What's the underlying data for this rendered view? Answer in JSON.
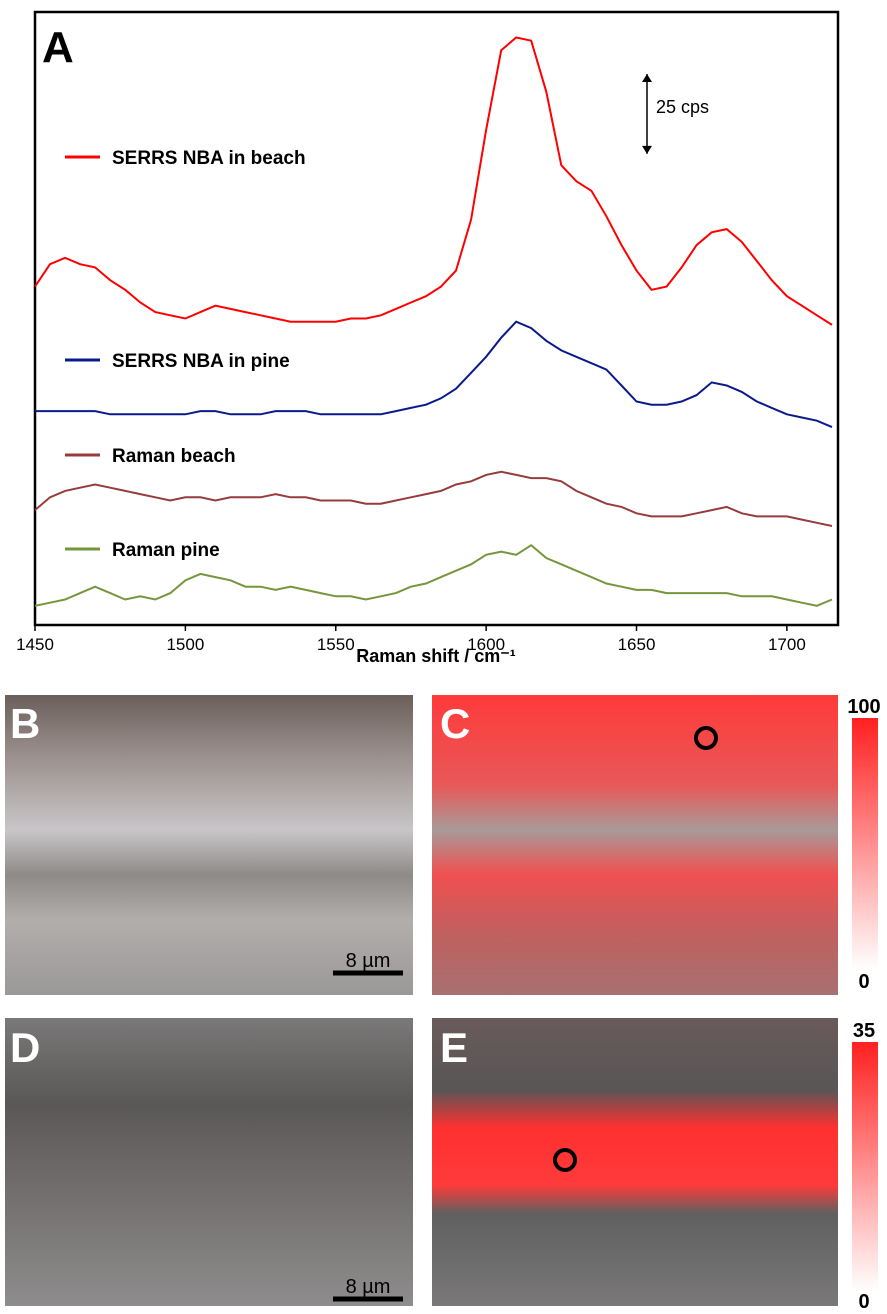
{
  "chart_data": {
    "type": "line",
    "panel_label": "A",
    "xlabel": "Raman shift / cm⁻¹",
    "x": [
      1450,
      1455,
      1460,
      1465,
      1470,
      1475,
      1480,
      1485,
      1490,
      1495,
      1500,
      1505,
      1510,
      1515,
      1520,
      1525,
      1530,
      1535,
      1540,
      1545,
      1550,
      1555,
      1560,
      1565,
      1570,
      1575,
      1580,
      1585,
      1590,
      1595,
      1600,
      1605,
      1610,
      1615,
      1620,
      1625,
      1630,
      1635,
      1640,
      1645,
      1650,
      1655,
      1660,
      1665,
      1670,
      1675,
      1680,
      1685,
      1690,
      1695,
      1700,
      1705,
      1710,
      1715
    ],
    "series": [
      {
        "name": "SERRS NBA in beach",
        "color": "#ff0000",
        "values": [
          106,
          113,
          115,
          113,
          112,
          108,
          105,
          101,
          98,
          97,
          96,
          98,
          100,
          99,
          98,
          97,
          96,
          95,
          95,
          95,
          95,
          96,
          96,
          97,
          99,
          101,
          103,
          106,
          111,
          127,
          155,
          180,
          184,
          183,
          167,
          144,
          139,
          136,
          128,
          119,
          111,
          105,
          106,
          112,
          119,
          123,
          124,
          120,
          114,
          108,
          103,
          100,
          97,
          94
        ]
      },
      {
        "name": "SERRS NBA in pine",
        "color": "#0a1a8c",
        "values": [
          67,
          67,
          67,
          67,
          67,
          66,
          66,
          66,
          66,
          66,
          66,
          67,
          67,
          66,
          66,
          66,
          67,
          67,
          67,
          66,
          66,
          66,
          66,
          66,
          67,
          68,
          69,
          71,
          74,
          79,
          84,
          90,
          95,
          93,
          89,
          86,
          84,
          82,
          80,
          75,
          70,
          69,
          69,
          70,
          72,
          76,
          75,
          73,
          70,
          68,
          66,
          65,
          64,
          62
        ]
      },
      {
        "name": "Raman beach",
        "color": "#963c3c",
        "values": [
          36,
          40,
          42,
          43,
          44,
          43,
          42,
          41,
          40,
          39,
          40,
          40,
          39,
          40,
          40,
          40,
          41,
          40,
          40,
          39,
          39,
          39,
          38,
          38,
          39,
          40,
          41,
          42,
          44,
          45,
          47,
          48,
          47,
          46,
          46,
          45,
          42,
          40,
          38,
          37,
          35,
          34,
          34,
          34,
          35,
          36,
          37,
          35,
          34,
          34,
          34,
          33,
          32,
          31
        ]
      },
      {
        "name": "Raman pine",
        "color": "#76963c",
        "values": [
          6,
          7,
          8,
          10,
          12,
          10,
          8,
          9,
          8,
          10,
          14,
          16,
          15,
          14,
          12,
          12,
          11,
          12,
          11,
          10,
          9,
          9,
          8,
          9,
          10,
          12,
          13,
          15,
          17,
          19,
          22,
          23,
          22,
          25,
          21,
          19,
          17,
          15,
          13,
          12,
          11,
          11,
          10,
          10,
          10,
          10,
          10,
          9,
          9,
          9,
          8,
          7,
          6,
          8
        ]
      }
    ],
    "xlim": [
      1450,
      1717
    ],
    "xticks": [
      1450,
      1500,
      1550,
      1600,
      1650,
      1700
    ],
    "ylim": [
      0,
      192
    ],
    "scale_bar": {
      "value": 25,
      "label": "25 cps"
    }
  },
  "panels": [
    {
      "label": "B",
      "scale_bar": "8 µm"
    },
    {
      "label": "C",
      "colorbar": {
        "max": 100,
        "min": 0
      }
    },
    {
      "label": "D",
      "scale_bar": "8 µm"
    },
    {
      "label": "E",
      "colorbar": {
        "max": 35,
        "min": 0
      }
    }
  ]
}
